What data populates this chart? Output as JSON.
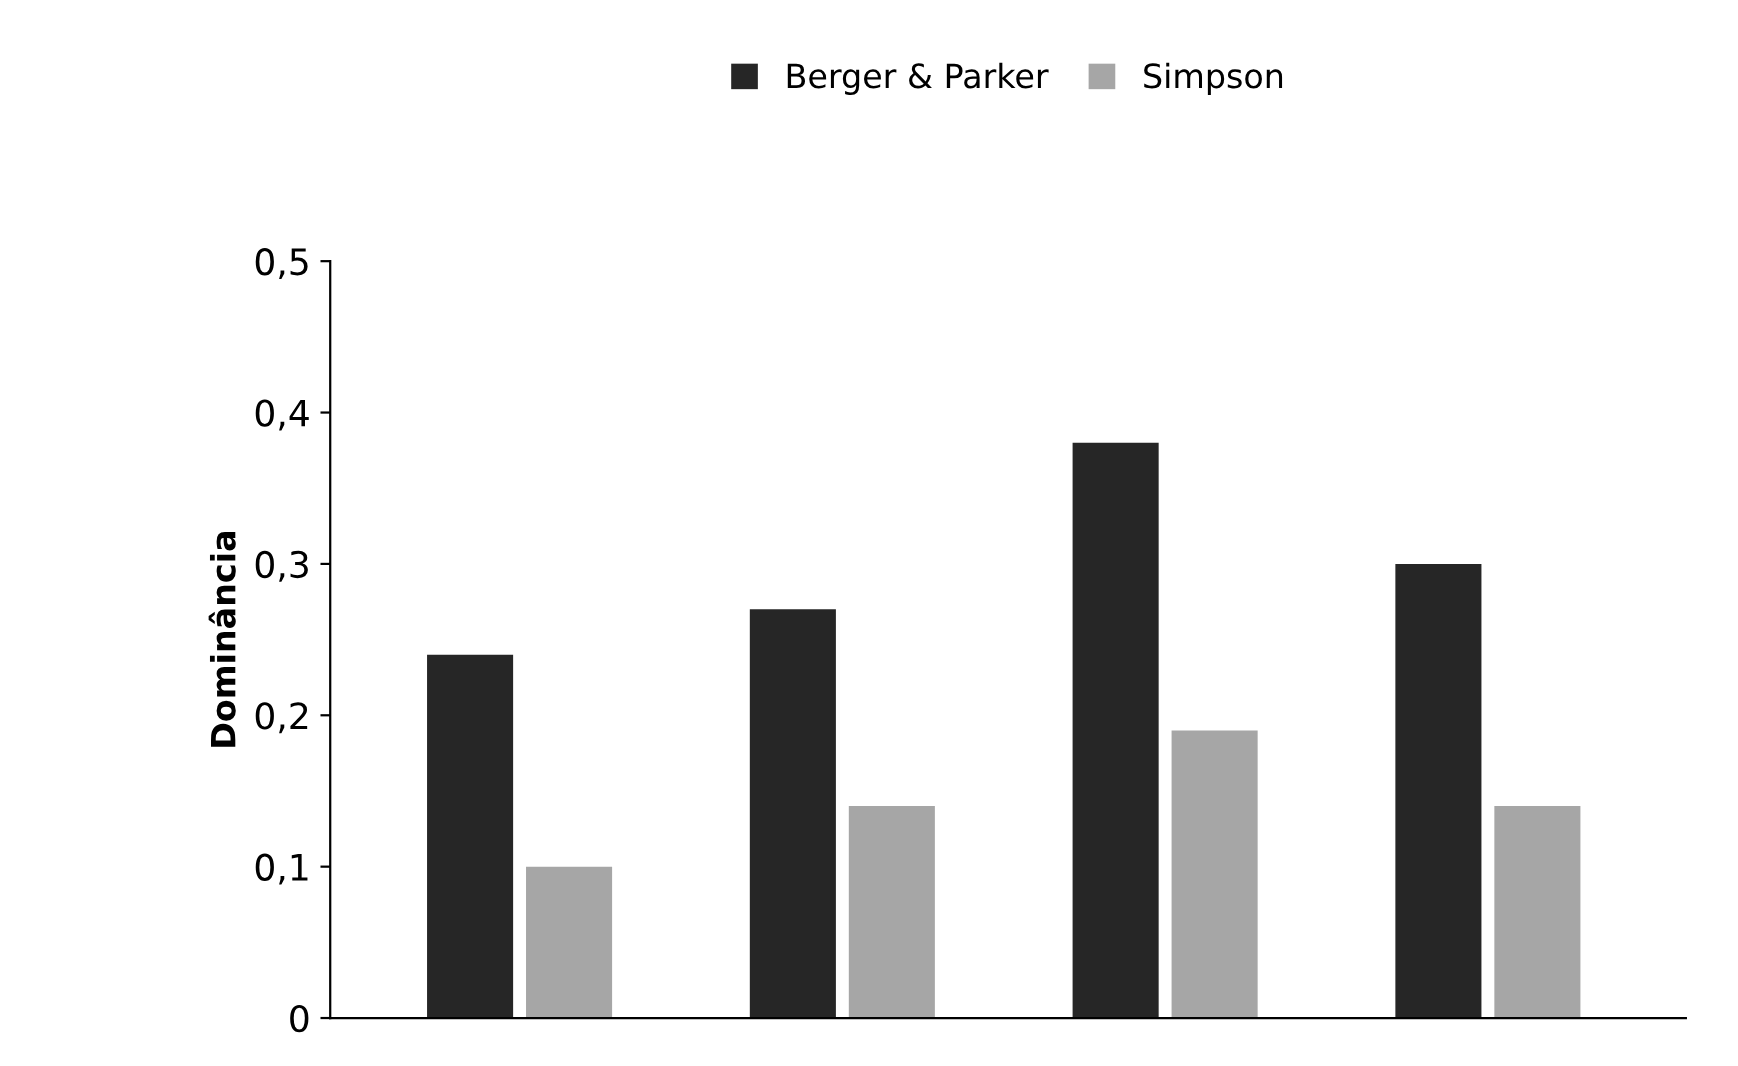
{
  "chart_data": {
    "type": "bar",
    "ylabel": "Dominância",
    "categories": [
      null,
      null,
      null,
      null
    ],
    "series": [
      {
        "name": "Berger & Parker",
        "color": "#262626",
        "values": [
          0.24,
          0.27,
          0.38,
          0.3
        ]
      },
      {
        "name": "Simpson",
        "color": "#a6a6a6",
        "values": [
          0.1,
          0.14,
          0.19,
          0.14
        ]
      }
    ],
    "ylim": [
      0,
      0.5
    ],
    "yticks": [
      {
        "value": 0,
        "label": "0"
      },
      {
        "value": 0.1,
        "label": "0,1"
      },
      {
        "value": 0.2,
        "label": "0,2"
      },
      {
        "value": 0.3,
        "label": "0,3"
      },
      {
        "value": 0.4,
        "label": "0,4"
      },
      {
        "value": 0.5,
        "label": "0,5"
      }
    ],
    "grid": false,
    "legend": "top"
  }
}
